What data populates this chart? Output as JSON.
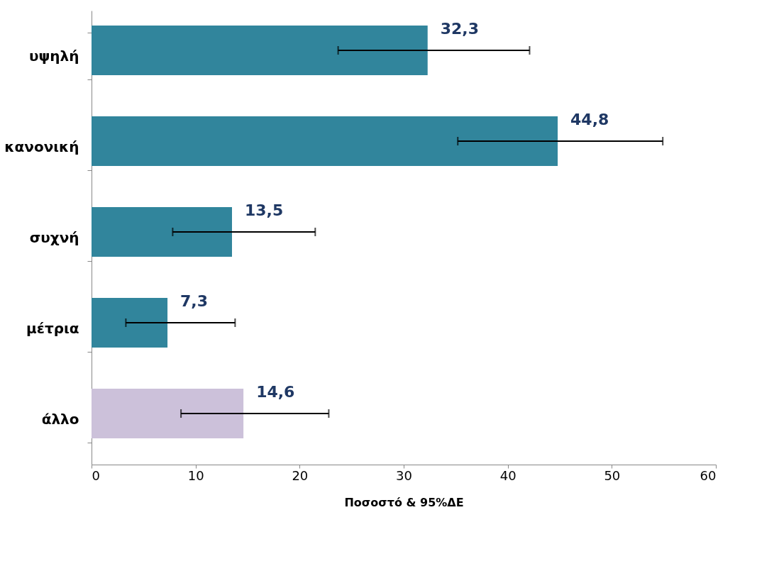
{
  "chart_data": {
    "type": "bar",
    "orientation": "horizontal",
    "xlabel": "Ποσοστό & 95%ΔΕ",
    "categories": [
      "υψηλή",
      "κανονική",
      "συχνή",
      "μέτρια",
      "άλλο"
    ],
    "values": [
      32.3,
      44.8,
      13.5,
      7.3,
      14.6
    ],
    "colors": [
      "#31859c",
      "#31859c",
      "#31859c",
      "#31859c",
      "#ccc1da"
    ],
    "errors": [
      [
        23.7,
        42.1
      ],
      [
        35.2,
        54.9
      ],
      [
        7.8,
        21.5
      ],
      [
        3.3,
        13.8
      ],
      [
        8.6,
        22.8
      ]
    ],
    "value_labels": [
      "32,3",
      "44,8",
      "13,5",
      "7,3",
      "14,6"
    ],
    "xlim": [
      0,
      60
    ],
    "xticks": [
      0,
      10,
      20,
      30,
      40,
      50,
      60
    ],
    "grid": false
  }
}
